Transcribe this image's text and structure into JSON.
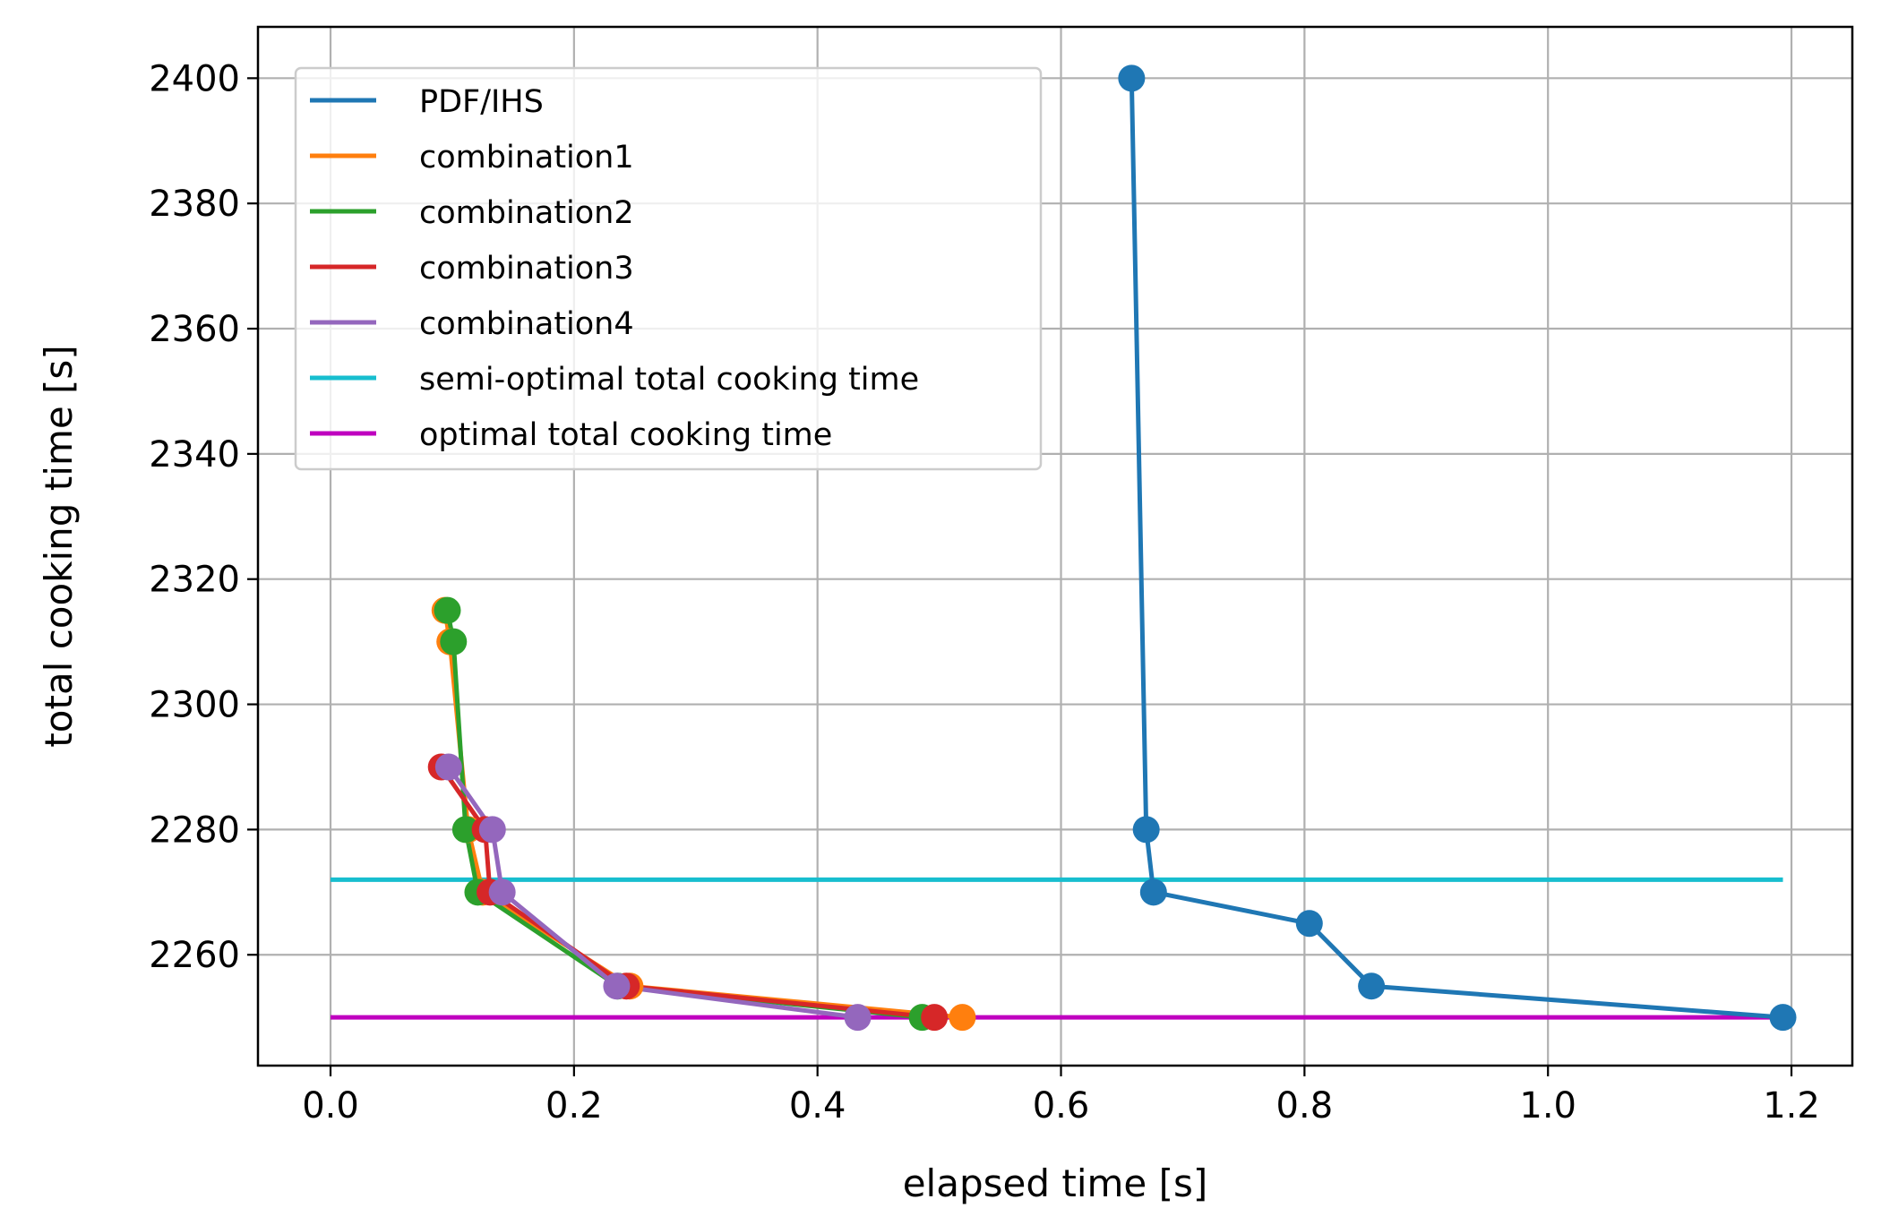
{
  "chart_data": {
    "type": "line",
    "title": "",
    "xlabel": "elapsed time [s]",
    "ylabel": "total cooking time [s]",
    "xlim": [
      -0.0596,
      1.25
    ],
    "ylim": [
      2242.3,
      2408.2
    ],
    "xticks": [
      0.0,
      0.2,
      0.4,
      0.6,
      0.8,
      1.0,
      1.2
    ],
    "xtick_labels": [
      "0.0",
      "0.2",
      "0.4",
      "0.6",
      "0.8",
      "1.0",
      "1.2"
    ],
    "yticks": [
      2260,
      2280,
      2300,
      2320,
      2340,
      2360,
      2380,
      2400
    ],
    "ytick_labels": [
      "2260",
      "2280",
      "2300",
      "2320",
      "2340",
      "2360",
      "2380",
      "2400"
    ],
    "grid": true,
    "legend_position": "top-left",
    "series": [
      {
        "name": "PDF/IHS",
        "color": "#1f77b4",
        "x": [
          0.658,
          0.67,
          0.676,
          0.804,
          0.855,
          1.193
        ],
        "y": [
          2400,
          2280,
          2270,
          2265,
          2255,
          2250
        ]
      },
      {
        "name": "combination1",
        "color": "#ff7f0e",
        "x": [
          0.094,
          0.098,
          0.113,
          0.125,
          0.246,
          0.519
        ],
        "y": [
          2315,
          2310,
          2280,
          2270,
          2255,
          2250
        ]
      },
      {
        "name": "combination2",
        "color": "#2ca02c",
        "x": [
          0.096,
          0.101,
          0.111,
          0.121,
          0.236,
          0.486
        ],
        "y": [
          2315,
          2310,
          2280,
          2270,
          2255,
          2250
        ]
      },
      {
        "name": "combination3",
        "color": "#d62728",
        "x": [
          0.091,
          0.127,
          0.131,
          0.243,
          0.496
        ],
        "y": [
          2290,
          2280,
          2270,
          2255,
          2250
        ]
      },
      {
        "name": "combination4",
        "color": "#9467bd",
        "x": [
          0.097,
          0.133,
          0.141,
          0.235,
          0.433
        ],
        "y": [
          2290,
          2280,
          2270,
          2255,
          2250
        ]
      }
    ],
    "reference_lines": [
      {
        "name": "semi-optimal total cooking time",
        "color": "#17becf",
        "y": 2272,
        "x": [
          0.0,
          1.193
        ]
      },
      {
        "name": "optimal total cooking time",
        "color": "#bf00bf",
        "y": 2250,
        "x": [
          0.0,
          1.193
        ]
      }
    ],
    "legend": [
      "PDF/IHS",
      "combination1",
      "combination2",
      "combination3",
      "combination4",
      "semi-optimal total cooking time",
      "optimal total cooking time"
    ]
  }
}
